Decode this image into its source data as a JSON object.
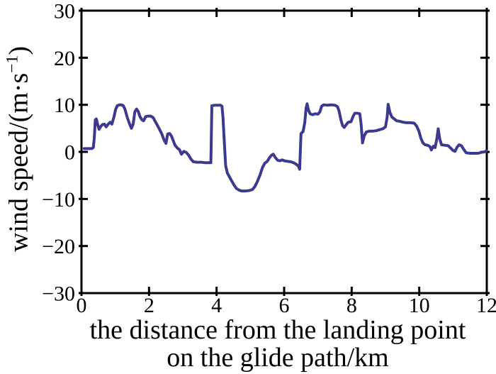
{
  "figure": {
    "background": "#ffffff",
    "ylabel_main": "wind speed/(m·s",
    "ylabel_sup": "−1",
    "ylabel_end": ")",
    "xlabel_line1": "the distance from the landing point",
    "xlabel_line2": "on the glide path/km"
  },
  "chart_data": {
    "type": "line",
    "title": "",
    "xlabel": "the distance from the landing point on the glide path/km",
    "ylabel": "wind speed/(m·s−1)",
    "xlim": [
      0,
      12
    ],
    "ylim": [
      -30,
      30
    ],
    "x_ticks": [
      0,
      2,
      4,
      6,
      8,
      10,
      12
    ],
    "y_ticks": [
      30,
      20,
      10,
      0,
      -10,
      -20,
      -30
    ],
    "x_tick_labels": [
      "0",
      "2",
      "4",
      "6",
      "8",
      "10",
      "12"
    ],
    "y_tick_labels": [
      "30",
      "20",
      "10",
      "0",
      "−10",
      "−20",
      "−30"
    ],
    "grid": false,
    "legend": "none",
    "axis_color": "#000000",
    "line_color": "#3c3a90",
    "line_width": 4,
    "series": [
      {
        "name": "wind speed",
        "points": [
          [
            0.08,
            0.7
          ],
          [
            0.2,
            0.7
          ],
          [
            0.3,
            0.7
          ],
          [
            0.35,
            0.9
          ],
          [
            0.38,
            3.0
          ],
          [
            0.41,
            6.8
          ],
          [
            0.44,
            7.0
          ],
          [
            0.48,
            5.8
          ],
          [
            0.52,
            4.8
          ],
          [
            0.57,
            5.4
          ],
          [
            0.62,
            5.8
          ],
          [
            0.68,
            5.9
          ],
          [
            0.73,
            5.3
          ],
          [
            0.79,
            5.9
          ],
          [
            0.85,
            6.3
          ],
          [
            0.9,
            5.9
          ],
          [
            0.96,
            7.4
          ],
          [
            1.01,
            9.0
          ],
          [
            1.06,
            9.8
          ],
          [
            1.12,
            10.0
          ],
          [
            1.18,
            10.0
          ],
          [
            1.24,
            9.8
          ],
          [
            1.29,
            9.0
          ],
          [
            1.35,
            7.4
          ],
          [
            1.41,
            6.2
          ],
          [
            1.48,
            5.0
          ],
          [
            1.53,
            5.9
          ],
          [
            1.58,
            8.5
          ],
          [
            1.63,
            9.1
          ],
          [
            1.68,
            8.6
          ],
          [
            1.73,
            7.5
          ],
          [
            1.79,
            6.8
          ],
          [
            1.84,
            6.6
          ],
          [
            1.9,
            7.5
          ],
          [
            1.97,
            7.6
          ],
          [
            2.05,
            7.6
          ],
          [
            2.12,
            7.3
          ],
          [
            2.18,
            6.5
          ],
          [
            2.25,
            5.6
          ],
          [
            2.31,
            4.8
          ],
          [
            2.38,
            3.8
          ],
          [
            2.44,
            2.6
          ],
          [
            2.5,
            1.8
          ],
          [
            2.55,
            3.8
          ],
          [
            2.61,
            3.9
          ],
          [
            2.66,
            3.4
          ],
          [
            2.71,
            2.5
          ],
          [
            2.77,
            1.4
          ],
          [
            2.84,
            0.8
          ],
          [
            2.9,
            0.5
          ],
          [
            2.96,
            -0.5
          ],
          [
            3.03,
            0.1
          ],
          [
            3.1,
            -0.1
          ],
          [
            3.17,
            -0.7
          ],
          [
            3.24,
            -1.5
          ],
          [
            3.31,
            -2.1
          ],
          [
            3.42,
            -2.2
          ],
          [
            3.55,
            -2.2
          ],
          [
            3.67,
            -2.3
          ],
          [
            3.79,
            -2.3
          ],
          [
            3.83,
            -2.3
          ],
          [
            3.86,
            9.8
          ],
          [
            3.94,
            9.9
          ],
          [
            4.04,
            9.9
          ],
          [
            4.12,
            9.9
          ],
          [
            4.16,
            9.7
          ],
          [
            4.19,
            7.3
          ],
          [
            4.23,
            2.0
          ],
          [
            4.27,
            -3.0
          ],
          [
            4.32,
            -4.5
          ],
          [
            4.38,
            -5.3
          ],
          [
            4.45,
            -6.2
          ],
          [
            4.52,
            -7.1
          ],
          [
            4.59,
            -7.8
          ],
          [
            4.66,
            -8.1
          ],
          [
            4.74,
            -8.3
          ],
          [
            4.86,
            -8.3
          ],
          [
            4.98,
            -8.2
          ],
          [
            5.06,
            -8.0
          ],
          [
            5.13,
            -7.4
          ],
          [
            5.2,
            -6.4
          ],
          [
            5.28,
            -5.0
          ],
          [
            5.36,
            -3.3
          ],
          [
            5.43,
            -2.4
          ],
          [
            5.5,
            -2.0
          ],
          [
            5.57,
            -1.2
          ],
          [
            5.63,
            -0.7
          ],
          [
            5.68,
            -0.5
          ],
          [
            5.74,
            -1.2
          ],
          [
            5.81,
            -1.8
          ],
          [
            5.88,
            -1.9
          ],
          [
            5.94,
            -1.7
          ],
          [
            6.01,
            -1.9
          ],
          [
            6.1,
            -2.0
          ],
          [
            6.19,
            -2.1
          ],
          [
            6.28,
            -2.3
          ],
          [
            6.35,
            -2.6
          ],
          [
            6.42,
            -3.0
          ],
          [
            6.46,
            -3.7
          ],
          [
            6.5,
            3.9
          ],
          [
            6.56,
            4.3
          ],
          [
            6.61,
            6.2
          ],
          [
            6.65,
            9.3
          ],
          [
            6.68,
            10.2
          ],
          [
            6.72,
            8.9
          ],
          [
            6.77,
            8.1
          ],
          [
            6.84,
            7.9
          ],
          [
            6.92,
            8.1
          ],
          [
            7.0,
            8.0
          ],
          [
            7.06,
            8.5
          ],
          [
            7.11,
            9.7
          ],
          [
            7.17,
            10.0
          ],
          [
            7.28,
            9.9
          ],
          [
            7.4,
            10.0
          ],
          [
            7.51,
            9.9
          ],
          [
            7.58,
            9.6
          ],
          [
            7.63,
            8.6
          ],
          [
            7.68,
            6.8
          ],
          [
            7.73,
            5.6
          ],
          [
            7.78,
            5.2
          ],
          [
            7.84,
            5.8
          ],
          [
            7.9,
            6.3
          ],
          [
            7.98,
            6.4
          ],
          [
            8.04,
            7.5
          ],
          [
            8.09,
            8.2
          ],
          [
            8.17,
            8.2
          ],
          [
            8.24,
            8.1
          ],
          [
            8.28,
            5.8
          ],
          [
            8.32,
            1.9
          ],
          [
            8.37,
            3.4
          ],
          [
            8.43,
            4.2
          ],
          [
            8.52,
            4.4
          ],
          [
            8.62,
            4.4
          ],
          [
            8.72,
            4.5
          ],
          [
            8.82,
            4.7
          ],
          [
            8.92,
            4.9
          ],
          [
            9.0,
            5.3
          ],
          [
            9.05,
            7.4
          ],
          [
            9.08,
            10.1
          ],
          [
            9.13,
            8.4
          ],
          [
            9.19,
            7.4
          ],
          [
            9.26,
            7.0
          ],
          [
            9.33,
            6.6
          ],
          [
            9.42,
            6.5
          ],
          [
            9.52,
            6.3
          ],
          [
            9.62,
            6.2
          ],
          [
            9.74,
            6.2
          ],
          [
            9.85,
            6.1
          ],
          [
            9.92,
            5.5
          ],
          [
            9.99,
            4.4
          ],
          [
            10.05,
            2.9
          ],
          [
            10.11,
            1.9
          ],
          [
            10.17,
            1.5
          ],
          [
            10.25,
            1.4
          ],
          [
            10.32,
            1.1
          ],
          [
            10.36,
            0.4
          ],
          [
            10.42,
            1.2
          ],
          [
            10.47,
            0.9
          ],
          [
            10.52,
            2.8
          ],
          [
            10.56,
            4.9
          ],
          [
            10.61,
            2.7
          ],
          [
            10.66,
            1.5
          ],
          [
            10.76,
            1.4
          ],
          [
            10.86,
            1.3
          ],
          [
            10.93,
            0.8
          ],
          [
            11.0,
            0.3
          ],
          [
            11.06,
            0.1
          ],
          [
            11.12,
            1.0
          ],
          [
            11.18,
            1.5
          ],
          [
            11.25,
            1.3
          ],
          [
            11.32,
            0.5
          ],
          [
            11.39,
            -0.2
          ],
          [
            11.5,
            -0.3
          ],
          [
            11.62,
            -0.3
          ],
          [
            11.74,
            -0.3
          ],
          [
            11.84,
            -0.1
          ],
          [
            11.93,
            0.0
          ],
          [
            11.99,
            0.2
          ]
        ]
      }
    ]
  }
}
